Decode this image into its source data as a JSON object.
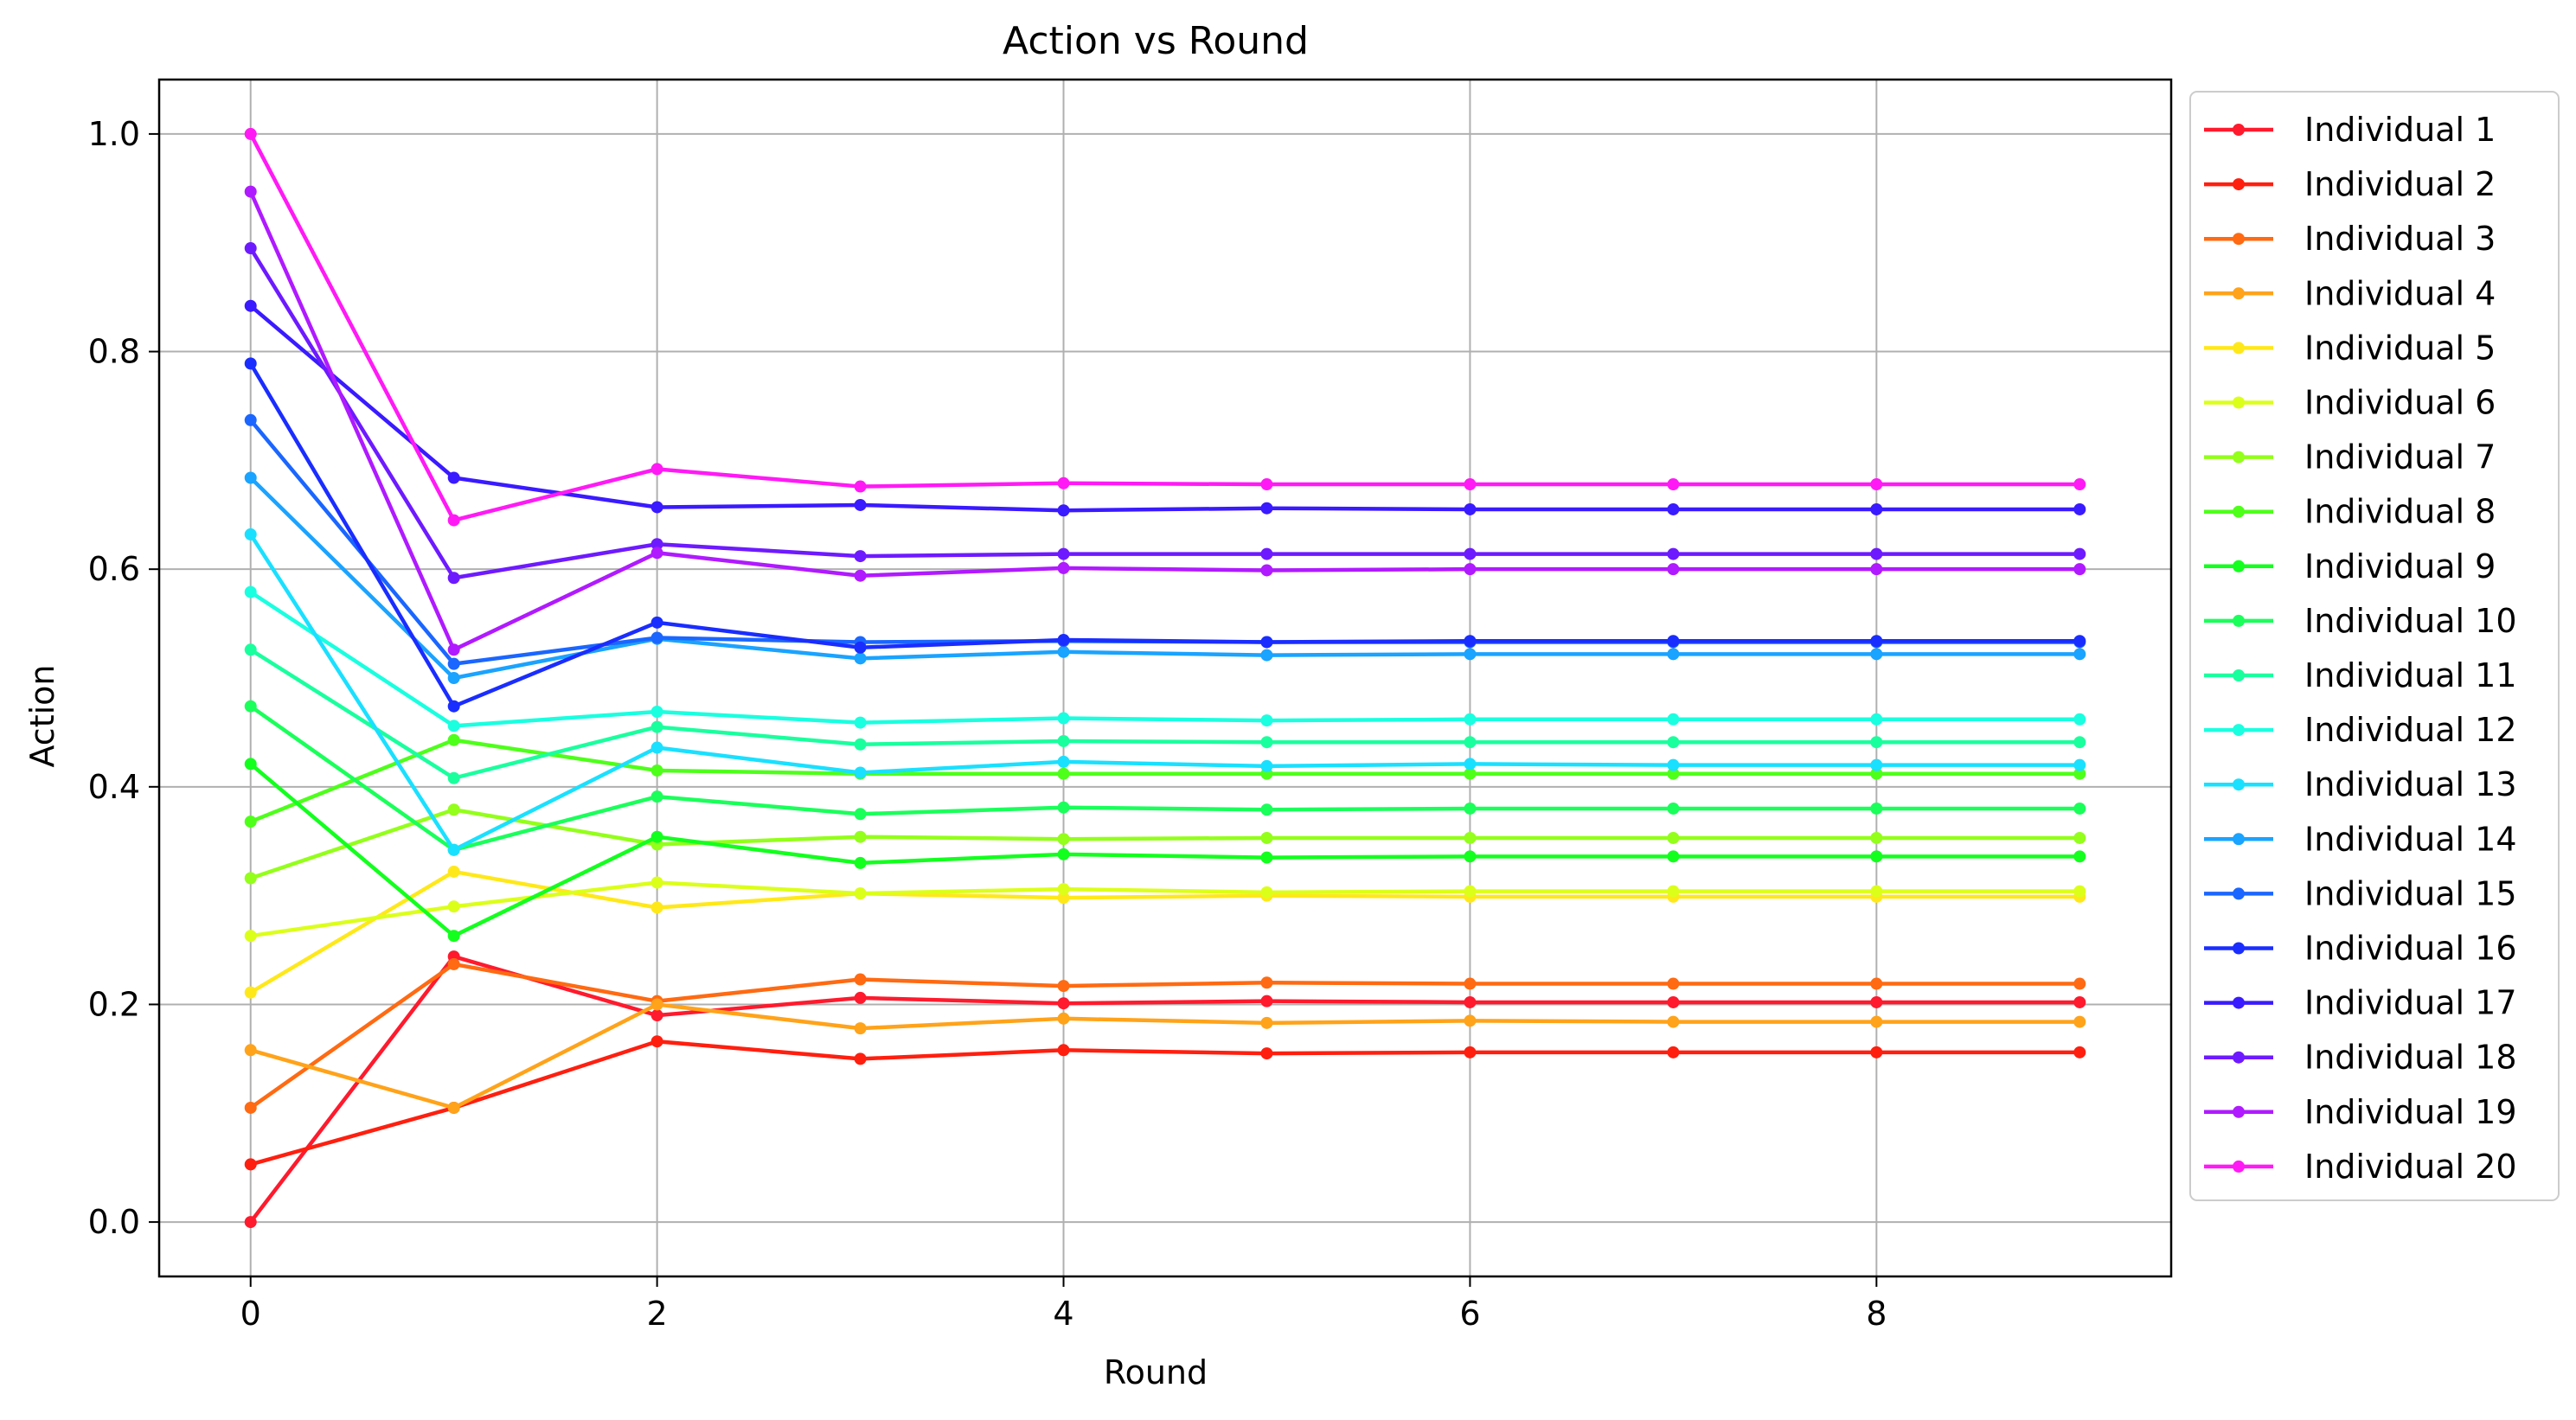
{
  "chart_data": {
    "type": "line",
    "title": "Action vs Round",
    "xlabel": "Round",
    "ylabel": "Action",
    "xlim": [
      -0.45,
      9.45
    ],
    "ylim": [
      -0.05,
      1.05
    ],
    "xticks": [
      0,
      2,
      4,
      6,
      8
    ],
    "yticks": [
      0.0,
      0.2,
      0.4,
      0.6,
      0.8,
      1.0
    ],
    "xtick_labels": [
      "0",
      "2",
      "4",
      "6",
      "8"
    ],
    "ytick_labels": [
      "0.0",
      "0.2",
      "0.4",
      "0.6",
      "0.8",
      "1.0"
    ],
    "grid": true,
    "legend_position": "outside-right",
    "x": [
      0,
      1,
      2,
      3,
      4,
      5,
      6,
      7,
      8,
      9
    ],
    "series": [
      {
        "name": "Individual 1",
        "color": "#ff1a2d",
        "values": [
          0.0,
          0.244,
          0.19,
          0.206,
          0.201,
          0.203,
          0.202,
          0.202,
          0.202,
          0.202
        ]
      },
      {
        "name": "Individual 2",
        "color": "#ff1f0f",
        "values": [
          0.053,
          0.105,
          0.166,
          0.15,
          0.158,
          0.155,
          0.156,
          0.156,
          0.156,
          0.156
        ]
      },
      {
        "name": "Individual 3",
        "color": "#ff6a12",
        "values": [
          0.105,
          0.237,
          0.203,
          0.223,
          0.217,
          0.22,
          0.219,
          0.219,
          0.219,
          0.219
        ]
      },
      {
        "name": "Individual 4",
        "color": "#ffa31a",
        "values": [
          0.158,
          0.105,
          0.2,
          0.178,
          0.187,
          0.183,
          0.185,
          0.184,
          0.184,
          0.184
        ]
      },
      {
        "name": "Individual 5",
        "color": "#ffe81a",
        "values": [
          0.211,
          0.322,
          0.289,
          0.302,
          0.298,
          0.3,
          0.299,
          0.299,
          0.299,
          0.299
        ]
      },
      {
        "name": "Individual 6",
        "color": "#dcff1a",
        "values": [
          0.263,
          0.29,
          0.312,
          0.302,
          0.306,
          0.303,
          0.304,
          0.304,
          0.304,
          0.304
        ]
      },
      {
        "name": "Individual 7",
        "color": "#93ff1a",
        "values": [
          0.316,
          0.379,
          0.347,
          0.354,
          0.352,
          0.353,
          0.353,
          0.353,
          0.353,
          0.353
        ]
      },
      {
        "name": "Individual 8",
        "color": "#4eff1a",
        "values": [
          0.368,
          0.443,
          0.415,
          0.412,
          0.412,
          0.412,
          0.412,
          0.412,
          0.412,
          0.412
        ]
      },
      {
        "name": "Individual 9",
        "color": "#13ff1e",
        "values": [
          0.421,
          0.263,
          0.354,
          0.33,
          0.338,
          0.335,
          0.336,
          0.336,
          0.336,
          0.336
        ]
      },
      {
        "name": "Individual 10",
        "color": "#1aff5a",
        "values": [
          0.474,
          0.342,
          0.391,
          0.375,
          0.381,
          0.379,
          0.38,
          0.38,
          0.38,
          0.38
        ]
      },
      {
        "name": "Individual 11",
        "color": "#1aff9e",
        "values": [
          0.526,
          0.408,
          0.455,
          0.439,
          0.442,
          0.441,
          0.441,
          0.441,
          0.441,
          0.441
        ]
      },
      {
        "name": "Individual 12",
        "color": "#1affe0",
        "values": [
          0.579,
          0.456,
          0.469,
          0.459,
          0.463,
          0.461,
          0.462,
          0.462,
          0.462,
          0.462
        ]
      },
      {
        "name": "Individual 13",
        "color": "#1ae0ff",
        "values": [
          0.632,
          0.342,
          0.436,
          0.413,
          0.423,
          0.419,
          0.421,
          0.42,
          0.42,
          0.42
        ]
      },
      {
        "name": "Individual 14",
        "color": "#1aa3ff",
        "values": [
          0.684,
          0.5,
          0.536,
          0.518,
          0.524,
          0.521,
          0.522,
          0.522,
          0.522,
          0.522
        ]
      },
      {
        "name": "Individual 15",
        "color": "#1a66ff",
        "values": [
          0.737,
          0.513,
          0.537,
          0.533,
          0.534,
          0.533,
          0.533,
          0.533,
          0.533,
          0.533
        ]
      },
      {
        "name": "Individual 16",
        "color": "#1a2dff",
        "values": [
          0.789,
          0.474,
          0.551,
          0.528,
          0.535,
          0.533,
          0.534,
          0.534,
          0.534,
          0.534
        ]
      },
      {
        "name": "Individual 17",
        "color": "#3a1aff",
        "values": [
          0.842,
          0.684,
          0.657,
          0.659,
          0.654,
          0.656,
          0.655,
          0.655,
          0.655,
          0.655
        ]
      },
      {
        "name": "Individual 18",
        "color": "#6e1aff",
        "values": [
          0.895,
          0.592,
          0.623,
          0.612,
          0.614,
          0.614,
          0.614,
          0.614,
          0.614,
          0.614
        ]
      },
      {
        "name": "Individual 19",
        "color": "#b01aff",
        "values": [
          0.947,
          0.526,
          0.615,
          0.594,
          0.601,
          0.599,
          0.6,
          0.6,
          0.6,
          0.6
        ]
      },
      {
        "name": "Individual 20",
        "color": "#ff1af5",
        "values": [
          1.0,
          0.645,
          0.692,
          0.676,
          0.679,
          0.678,
          0.678,
          0.678,
          0.678,
          0.678
        ]
      }
    ]
  }
}
